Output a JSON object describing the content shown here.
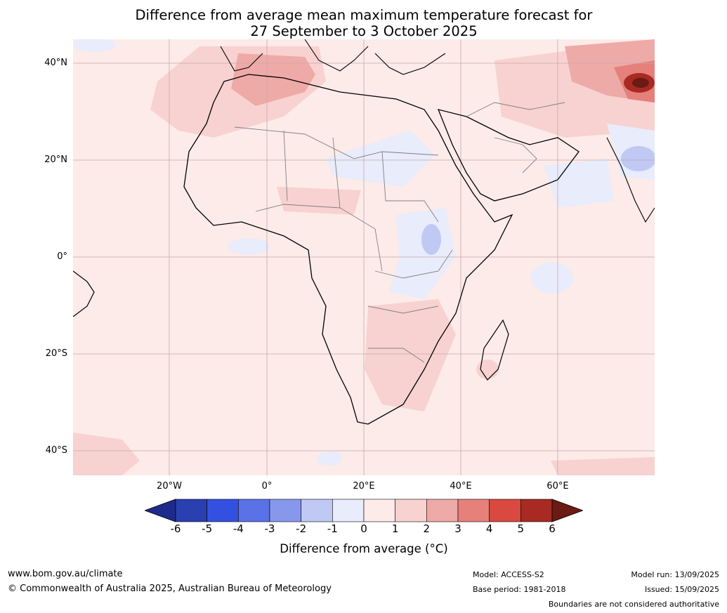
{
  "title_line1": "Difference from average mean maximum temperature forecast for",
  "title_line2": "27 September to 3 October 2025",
  "lat_labels": [
    "40°N",
    "20°N",
    "0°",
    "20°S",
    "40°S"
  ],
  "lon_labels": [
    "20°W",
    "0°",
    "20°E",
    "40°E",
    "60°E"
  ],
  "colorbar": {
    "label": "Difference from average (°C)",
    "ticks": [
      "-6",
      "-5",
      "-4",
      "-3",
      "-2",
      "-1",
      "0",
      "1",
      "2",
      "3",
      "4",
      "5",
      "6"
    ],
    "colors": [
      "#1e2b8c",
      "#2a3fb0",
      "#3350e0",
      "#5a72e6",
      "#8798ec",
      "#c0c8f4",
      "#e8ecfb",
      "#fcebe9",
      "#f7d2d0",
      "#eeaaa7",
      "#e5807b",
      "#d9493f",
      "#a82a22",
      "#6b1a14"
    ]
  },
  "footer": {
    "website": "www.bom.gov.au/climate",
    "copyright": "© Commonwealth of Australia 2025, Australian Bureau of Meteorology",
    "model": "Model: ACCESS-S2",
    "base_period": "Base period: 1981-2018",
    "model_run": "Model run: 13/09/2025",
    "issued": "Issued: 15/09/2025",
    "disclaimer": "Boundaries are not considered authoritative"
  }
}
